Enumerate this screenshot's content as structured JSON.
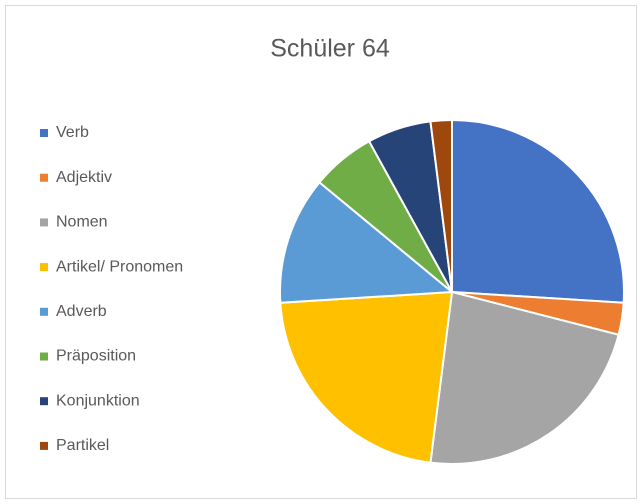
{
  "chart_data": {
    "type": "pie",
    "title": "Schüler 64",
    "categories": [
      "Verb",
      "Adjektiv",
      "Nomen",
      "Artikel/ Pronomen",
      "Adverb",
      "Präposition",
      "Konjunktion",
      "Partikel"
    ],
    "values": [
      26,
      3,
      23,
      22,
      12,
      6,
      6,
      2
    ],
    "colors": [
      "#4472c4",
      "#ed7d31",
      "#a5a5a5",
      "#ffc000",
      "#5b9bd5",
      "#70ad47",
      "#264478",
      "#9e480e"
    ],
    "legend": "left"
  }
}
